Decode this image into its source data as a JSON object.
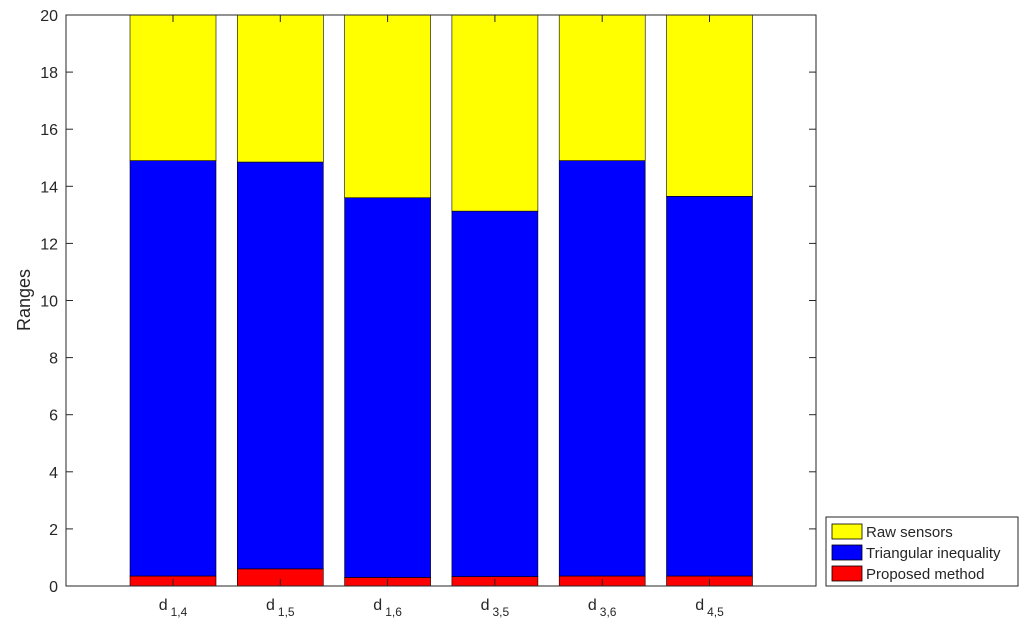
{
  "chart_data": {
    "type": "bar",
    "stacked": true,
    "categories": [
      {
        "base": "d",
        "sub": "1,4"
      },
      {
        "base": "d",
        "sub": "1,5"
      },
      {
        "base": "d",
        "sub": "1,6"
      },
      {
        "base": "d",
        "sub": "3,5"
      },
      {
        "base": "d",
        "sub": "3,6"
      },
      {
        "base": "d",
        "sub": "4,5"
      }
    ],
    "series": [
      {
        "name": "Proposed method",
        "color": "#ff0000",
        "values": [
          0.35,
          0.6,
          0.3,
          0.33,
          0.35,
          0.35
        ]
      },
      {
        "name": "Triangular inequality",
        "color": "#0000ff",
        "values": [
          14.55,
          14.25,
          13.3,
          12.8,
          14.55,
          13.3
        ]
      },
      {
        "name": "Raw sensors",
        "color": "#ffff00",
        "values": [
          5.1,
          5.15,
          6.4,
          6.87,
          5.1,
          6.35
        ]
      }
    ],
    "title": "",
    "xlabel": "",
    "ylabel": "Ranges",
    "ylim": [
      0,
      20
    ],
    "yticks": [
      0,
      2,
      4,
      6,
      8,
      10,
      12,
      14,
      16,
      18,
      20
    ],
    "legend": {
      "position": "bottom-right-outside",
      "order": [
        "Raw sensors",
        "Triangular inequality",
        "Proposed method"
      ]
    },
    "grid": false
  }
}
